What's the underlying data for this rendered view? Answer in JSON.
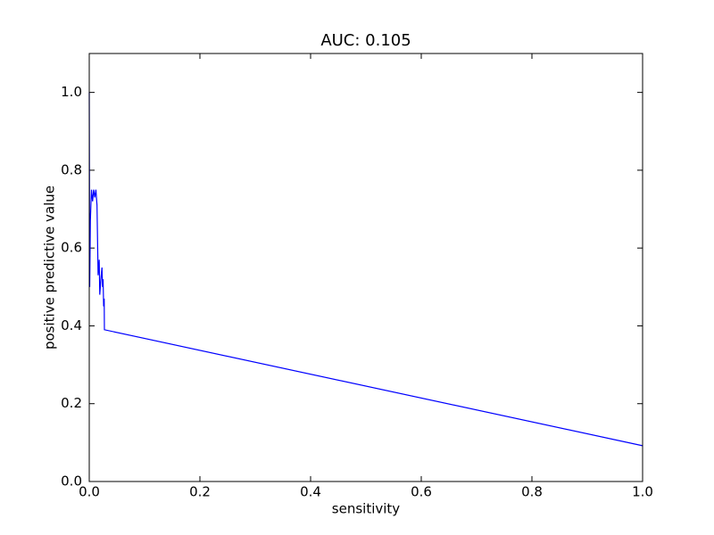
{
  "chart_data": {
    "type": "line",
    "title": "AUC: 0.105",
    "xlabel": "sensitivity",
    "ylabel": "positive predictive value",
    "x": [
      0,
      0.0008,
      0.002,
      0.004,
      0.006,
      0.008,
      0.01,
      0.012,
      0.014,
      0.016,
      0.018,
      0.019,
      0.021,
      0.023,
      0.024,
      0.025,
      0.026,
      0.027,
      0.0274,
      1.0
    ],
    "series": [
      {
        "color": "#0000ff",
        "values": [
          1.0,
          0.5,
          0.67,
          0.75,
          0.72,
          0.75,
          0.73,
          0.75,
          0.71,
          0.53,
          0.57,
          0.48,
          0.52,
          0.55,
          0.5,
          0.52,
          0.45,
          0.47,
          0.39,
          0.092
        ]
      }
    ],
    "xlim": [
      0,
      1
    ],
    "ylim": [
      0,
      1.1
    ],
    "xticks": [
      {
        "value": 0,
        "label": "0.0"
      },
      0.2,
      0.4,
      0.6,
      0.8,
      {
        "value": 1,
        "label": "1.0"
      }
    ],
    "yticks": [
      {
        "value": 0,
        "label": "0.0"
      },
      0.2,
      0.4,
      0.6,
      0.8,
      {
        "value": 1,
        "label": "1.0"
      }
    ]
  }
}
